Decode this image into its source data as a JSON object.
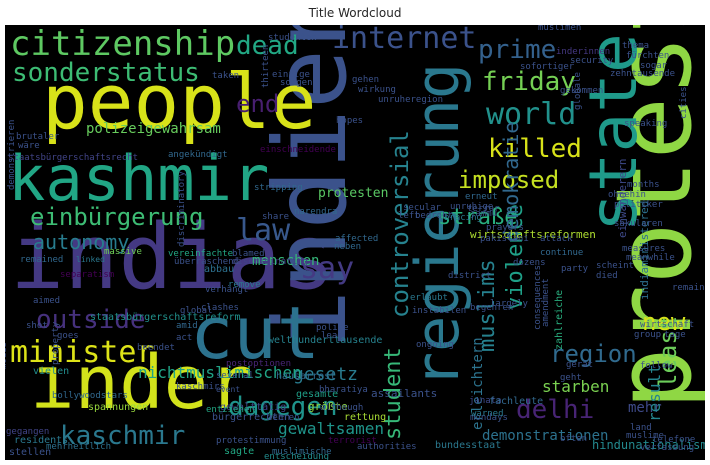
{
  "chart_data": {
    "type": "wordcloud",
    "title": "Title Wordcloud",
    "words": [
      {
        "text": "indias",
        "color": "#443983"
      },
      {
        "text": "indien",
        "color": "#3b528b"
      },
      {
        "text": "protests",
        "color": "#8fd744"
      },
      {
        "text": "people",
        "color": "#d8e219"
      },
      {
        "text": "kashmir",
        "color": "#21a685"
      },
      {
        "text": "inder",
        "color": "#d2e21b"
      },
      {
        "text": "cut",
        "color": "#2c728e"
      },
      {
        "text": "regierung",
        "color": "#2a788e"
      },
      {
        "text": "state",
        "color": "#1f9a8a"
      },
      {
        "text": "citizenship",
        "color": "#5ec962"
      },
      {
        "text": "sonderstatus",
        "color": "#3dbc74"
      },
      {
        "text": "dead",
        "color": "#22a884"
      },
      {
        "text": "internet",
        "color": "#3b528b"
      },
      {
        "text": "prime",
        "color": "#34618d"
      },
      {
        "text": "friday",
        "color": "#75d054"
      },
      {
        "text": "world",
        "color": "#21918c"
      },
      {
        "text": "killed",
        "color": "#d8e219"
      },
      {
        "text": "imposed",
        "color": "#c5e021"
      },
      {
        "text": "end",
        "color": "#481f70"
      },
      {
        "text": "law",
        "color": "#38588c"
      },
      {
        "text": "controversial",
        "color": "#26828e"
      },
      {
        "text": "straße",
        "color": "#29af7f"
      },
      {
        "text": "einbürgerung",
        "color": "#3dbc74"
      },
      {
        "text": "autonomy",
        "color": "#287c8e"
      },
      {
        "text": "say",
        "color": "#443a83"
      },
      {
        "text": "minister",
        "color": "#dde318"
      },
      {
        "text": "outside",
        "color": "#46317e"
      },
      {
        "text": "dagegen",
        "color": "#1f948c"
      },
      {
        "text": "kaschmir",
        "color": "#2a788e"
      },
      {
        "text": "region",
        "color": "#306a8e"
      },
      {
        "text": "least",
        "color": "#6ccd5a"
      },
      {
        "text": "new",
        "color": "#d5e21a"
      },
      {
        "text": "delhi",
        "color": "#482475"
      },
      {
        "text": "muslims",
        "color": "#26818e"
      },
      {
        "text": "violence",
        "color": "#1fa088"
      },
      {
        "text": "demokratie",
        "color": "#31688e"
      },
      {
        "text": "student",
        "color": "#37b878"
      },
      {
        "text": "gesetz",
        "color": "#297b8e"
      },
      {
        "text": "menschen",
        "color": "#35b779"
      },
      {
        "text": "starben",
        "color": "#7ad151"
      },
      {
        "text": "erleichtern",
        "color": "#2c738e"
      },
      {
        "text": "mehr",
        "color": "#3e4a89"
      },
      {
        "text": "result",
        "color": "#24868e"
      },
      {
        "text": "demonstrationen",
        "color": "#2c728e"
      },
      {
        "text": "gewaltsamen",
        "color": "#1f958b"
      },
      {
        "text": "nichtmuslimischen",
        "color": "#20a486"
      },
      {
        "text": "polizeigewahrsam",
        "color": "#67cc5c"
      },
      {
        "text": "protesten",
        "color": "#5ac864"
      },
      {
        "text": "staatsbürgerschaftsreform",
        "color": "#21918c"
      },
      {
        "text": "welthunderttausende",
        "color": "#26828e"
      },
      {
        "text": "wirtschaftsreformen",
        "color": "#addc30"
      },
      {
        "text": "demonstrieren",
        "color": "#3b528b"
      },
      {
        "text": "einwanderern",
        "color": "#3e4989"
      },
      {
        "text": "indiaministered",
        "color": "#2d708e"
      },
      {
        "text": "zahlreiche",
        "color": "#29af7f"
      },
      {
        "text": "gewalttätig",
        "color": "#3f4788"
      },
      {
        "text": "einschneidende",
        "color": "#440154"
      },
      {
        "text": "abbau",
        "color": "#2d708e"
      },
      {
        "text": "muslimen",
        "color": "#482576"
      },
      {
        "text": "bürgerrechten",
        "color": "#3b528b"
      },
      {
        "text": "inderinnen",
        "color": "#453882"
      },
      {
        "text": "größte",
        "color": "#8fd744"
      },
      {
        "text": "gesamte",
        "color": "#1fa088"
      },
      {
        "text": "hausarrest",
        "color": "#31688e"
      },
      {
        "text": "bharatiya",
        "color": "#3b528b"
      },
      {
        "text": "assailants",
        "color": "#3b528b"
      },
      {
        "text": "bollywoodstars",
        "color": "#31688e"
      },
      {
        "text": "massive",
        "color": "#70cf57"
      },
      {
        "text": "vielen",
        "color": "#228d8d"
      },
      {
        "text": "hindunationalismus",
        "color": "#23898e"
      },
      {
        "text": "bundesstaat",
        "color": "#2a788e"
      },
      {
        "text": "entziehen",
        "color": "#22a884"
      },
      {
        "text": "spannungen",
        "color": "#98d83e"
      },
      {
        "text": "rettung",
        "color": "#a8db34"
      },
      {
        "text": "sagte",
        "color": "#22a884"
      },
      {
        "text": "entscheidung",
        "color": "#228c8d"
      },
      {
        "text": "muslimische",
        "color": "#31688e"
      },
      {
        "text": "mehrheitlich",
        "color": "#2d708e"
      },
      {
        "text": "janata",
        "color": "#3e4989"
      },
      {
        "text": "fachleute",
        "color": "#31688e"
      },
      {
        "text": "amid",
        "color": "#31688e"
      },
      {
        "text": "goes",
        "color": "#3b528b"
      },
      {
        "text": "aimed",
        "color": "#3b528b"
      },
      {
        "text": "shot",
        "color": "#3b528b"
      },
      {
        "text": "gegangen",
        "color": "#414487"
      },
      {
        "text": "residents",
        "color": "#2a788e"
      },
      {
        "text": "stellen",
        "color": "#3b528b"
      },
      {
        "text": "cities",
        "color": "#3b528b"
      },
      {
        "text": "separatism",
        "color": "#440154"
      },
      {
        "text": "remained",
        "color": "#31688e"
      },
      {
        "text": "linked",
        "color": "#2a788e"
      },
      {
        "text": "vereinfachte",
        "color": "#22a884"
      },
      {
        "text": "überraschend",
        "color": "#3b528b"
      },
      {
        "text": "discriminating",
        "color": "#414487"
      },
      {
        "text": "discriminatory",
        "color": "#3b528b"
      },
      {
        "text": "affected",
        "color": "#31688e"
      },
      {
        "text": "share",
        "color": "#3b528b"
      },
      {
        "text": "remove",
        "color": "#2a788e"
      },
      {
        "text": "clashes",
        "color": "#3b528b"
      },
      {
        "text": "global",
        "color": "#3b528b"
      },
      {
        "text": "police",
        "color": "#3b528b"
      },
      {
        "text": "neben",
        "color": "#31688e"
      },
      {
        "text": "left",
        "color": "#3b528b"
      },
      {
        "text": "bedroht",
        "color": "#3b528b"
      },
      {
        "text": "instabilen",
        "color": "#3b528b"
      },
      {
        "text": "begehren",
        "color": "#3b528b"
      },
      {
        "text": "largely",
        "color": "#3b528b"
      },
      {
        "text": "erlaubt",
        "color": "#2a788e"
      },
      {
        "text": "ongoing",
        "color": "#3b528b"
      },
      {
        "text": "lead",
        "color": "#3b528b"
      },
      {
        "text": "although",
        "color": "#3b528b"
      },
      {
        "text": "mondays",
        "color": "#3b528b"
      },
      {
        "text": "authorities",
        "color": "#3b528b"
      },
      {
        "text": "warned",
        "color": "#2a788e"
      },
      {
        "text": "several",
        "color": "#3b528b"
      },
      {
        "text": "wehren",
        "color": "#3b528b"
      },
      {
        "text": "event",
        "color": "#3b528b"
      },
      {
        "text": "beendet",
        "color": "#3b528b"
      },
      {
        "text": "postoptionen",
        "color": "#482576"
      },
      {
        "text": "protestimmung",
        "color": "#3b528b"
      },
      {
        "text": "terrorist",
        "color": "#440154"
      },
      {
        "text": "angekündigt",
        "color": "#31688e"
      },
      {
        "text": "brutaler",
        "color": "#3b528b"
      },
      {
        "text": "wäre",
        "color": "#3b528b"
      },
      {
        "text": "staatsbürgerschaftsrecht",
        "color": "#414487"
      },
      {
        "text": "blamed",
        "color": "#3b528b"
      },
      {
        "text": "stripping",
        "color": "#31688e"
      },
      {
        "text": "narendra",
        "color": "#31688e"
      },
      {
        "text": "secular",
        "color": "#3b528b"
      },
      {
        "text": "bracing",
        "color": "#2a788e"
      },
      {
        "text": "prayers",
        "color": "#3b528b"
      },
      {
        "text": "jammu",
        "color": "#3b528b"
      },
      {
        "text": "pakistani",
        "color": "#3b528b"
      },
      {
        "text": "erneut",
        "color": "#31688e"
      },
      {
        "text": "unruhige",
        "color": "#3b528b"
      },
      {
        "text": "terror",
        "color": "#3b528b"
      },
      {
        "text": "dozens",
        "color": "#3b528b"
      },
      {
        "text": "continue",
        "color": "#31688e"
      },
      {
        "text": "attack",
        "color": "#3b528b"
      },
      {
        "text": "party",
        "color": "#3b528b"
      },
      {
        "text": "scheint",
        "color": "#3b528b"
      },
      {
        "text": "died",
        "color": "#3b528b"
      },
      {
        "text": "säkularen",
        "color": "#3b528b"
      },
      {
        "text": "measures",
        "color": "#3b528b"
      },
      {
        "text": "meanwhile",
        "color": "#3b528b"
      },
      {
        "text": "politiker",
        "color": "#3b528b"
      },
      {
        "text": "ohnehin",
        "color": "#3b528b"
      },
      {
        "text": "months",
        "color": "#3b528b"
      },
      {
        "text": "university",
        "color": "#3b528b"
      },
      {
        "text": "stories",
        "color": "#3b528b"
      },
      {
        "text": "women",
        "color": "#3b528b"
      },
      {
        "text": "inzwischen",
        "color": "#3b528b"
      },
      {
        "text": "constitution",
        "color": "#3b528b"
      },
      {
        "text": "thema",
        "color": "#3b528b"
      },
      {
        "text": "fürchten",
        "color": "#3b528b"
      },
      {
        "text": "sogar",
        "color": "#3b528b"
      },
      {
        "text": "zehntausende",
        "color": "#3b528b"
      },
      {
        "text": "sofortiger",
        "color": "#3b528b"
      },
      {
        "text": "security",
        "color": "#3b528b"
      },
      {
        "text": "muslimen",
        "color": "#3b528b"
      },
      {
        "text": "studenten",
        "color": "#3b528b"
      },
      {
        "text": "gehen",
        "color": "#3b528b"
      },
      {
        "text": "wirkung",
        "color": "#3b528b"
      },
      {
        "text": "einzige",
        "color": "#3b528b"
      },
      {
        "text": "sorgen",
        "color": "#3b528b"
      },
      {
        "text": "taken",
        "color": "#3b528b"
      },
      {
        "text": "thirteen",
        "color": "#3b528b"
      },
      {
        "text": "unruheregion",
        "color": "#3b528b"
      },
      {
        "text": "gekommen",
        "color": "#3b528b"
      },
      {
        "text": "globale",
        "color": "#3b528b"
      },
      {
        "text": "hopes",
        "color": "#3b528b"
      },
      {
        "text": "speaking",
        "color": "#3b528b"
      },
      {
        "text": "wirtschaft",
        "color": "#3b528b"
      },
      {
        "text": "remains",
        "color": "#3b528b"
      },
      {
        "text": "group",
        "color": "#3b528b"
      },
      {
        "text": "tage",
        "color": "#3b528b"
      },
      {
        "text": "follow",
        "color": "#3b528b"
      },
      {
        "text": "land",
        "color": "#3b528b"
      },
      {
        "text": "muslime",
        "color": "#3b528b"
      },
      {
        "text": "telefone",
        "color": "#3b528b"
      },
      {
        "text": "verfassung",
        "color": "#3b528b"
      },
      {
        "text": "often",
        "color": "#3b528b"
      },
      {
        "text": "act",
        "color": "#3b528b"
      },
      {
        "text": "amendment",
        "color": "#3b528b"
      },
      {
        "text": "geht",
        "color": "#3b528b"
      },
      {
        "text": "consequences",
        "color": "#3b528b"
      },
      {
        "text": "district",
        "color": "#3b528b"
      },
      {
        "text": "property",
        "color": "#3b528b"
      },
      {
        "text": "modis",
        "color": "#3b528b"
      },
      {
        "text": "kaschmirs",
        "color": "#3b528b"
      },
      {
        "text": "verhängt",
        "color": "#3b528b"
      },
      {
        "text": "gerät",
        "color": "#3b528b"
      },
      {
        "text": "waffen",
        "color": "#3b528b"
      }
    ]
  }
}
